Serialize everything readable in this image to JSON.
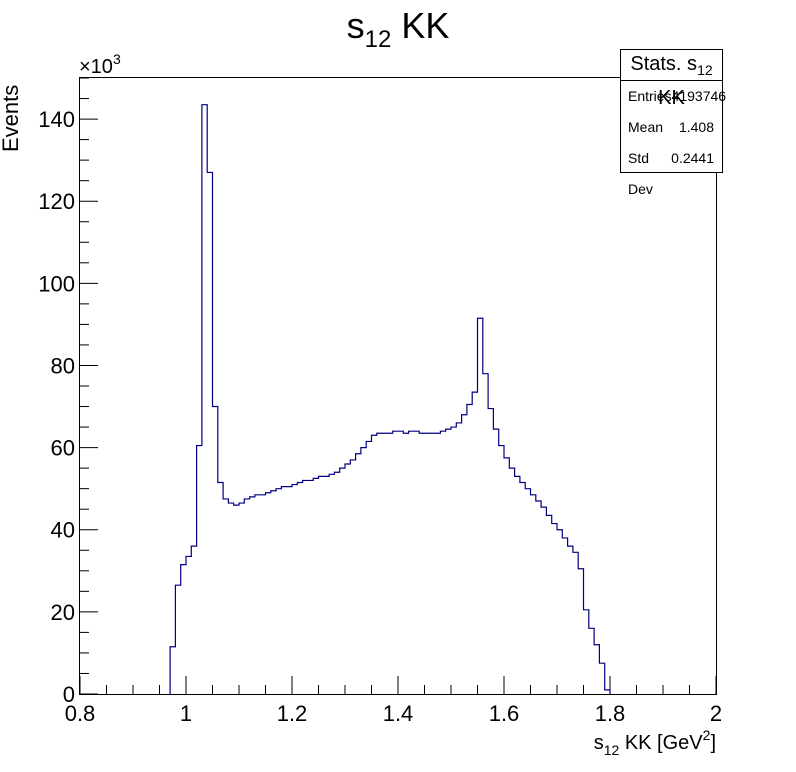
{
  "chart_data": {
    "type": "histogram",
    "title": {
      "prefix": "s",
      "sub": "12",
      "suffix": " KK"
    },
    "xlabel": {
      "prefix": "s",
      "sub": "12",
      "mid": " KK [GeV",
      "sup": "2",
      "suffix": "]"
    },
    "ylabel": "Events",
    "y_multiplier": {
      "base": "×10",
      "exp": "3"
    },
    "xlim": [
      0.8,
      2.0
    ],
    "ylim": [
      0,
      150
    ],
    "x_ticks": [
      "0.8",
      "1",
      "1.2",
      "1.4",
      "1.6",
      "1.8",
      "2"
    ],
    "y_ticks": [
      "0",
      "20",
      "40",
      "60",
      "80",
      "100",
      "120",
      "140"
    ],
    "bin_width": 0.01,
    "first_bin_low_edge": 0.97,
    "values": [
      11.5,
      26.5,
      31.5,
      33.5,
      36,
      60.5,
      143.5,
      127,
      70,
      51.5,
      47.5,
      46.5,
      46,
      46.5,
      47.5,
      48,
      48.5,
      48.5,
      49,
      49.5,
      50,
      50.5,
      50.5,
      51,
      51.5,
      52,
      52,
      52.5,
      53,
      53,
      53.5,
      54,
      55,
      56,
      57,
      58.5,
      60,
      61.5,
      63,
      63.5,
      63.5,
      63.5,
      64,
      64,
      63.5,
      64,
      64,
      63.5,
      63.5,
      63.5,
      63.5,
      64,
      64.5,
      65,
      66,
      68,
      70.5,
      73.5,
      91.5,
      78,
      69.5,
      64.5,
      60.5,
      57.5,
      55,
      53,
      51.5,
      50,
      48.5,
      47,
      45.5,
      43.5,
      41.5,
      40,
      38,
      36,
      34.5,
      30.5,
      20.5,
      16,
      12,
      7.5,
      1
    ],
    "grid": false,
    "line_color": "#000080",
    "stats": {
      "title": {
        "prefix": "Stats. s",
        "sub": "12",
        "suffix": " KK"
      },
      "rows": [
        {
          "label": "Entries",
          "value": "4193746"
        },
        {
          "label": "Mean",
          "value": "1.408"
        },
        {
          "label": "Std Dev",
          "value": "0.2441"
        }
      ]
    }
  }
}
